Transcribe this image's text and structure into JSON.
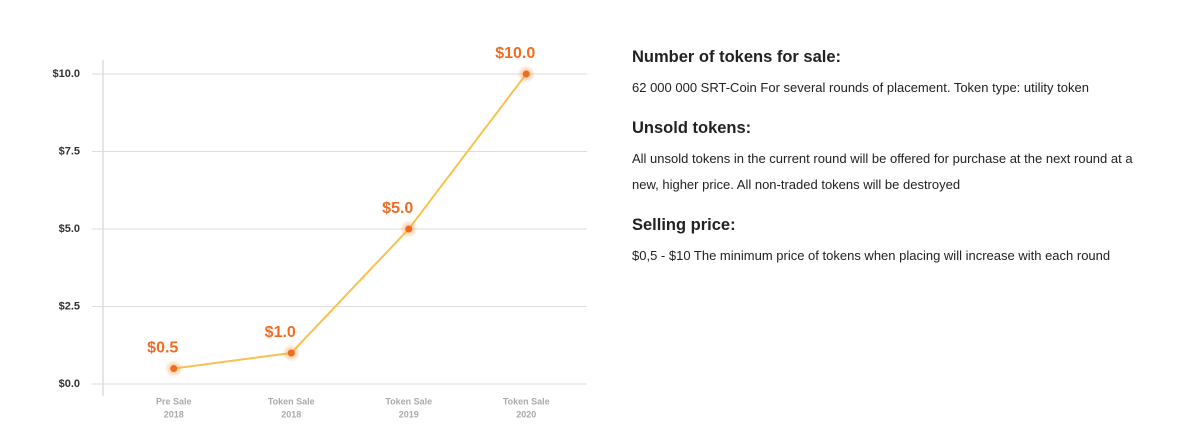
{
  "chart_data": {
    "type": "line",
    "categories": [
      [
        "Pre Sale",
        "2018"
      ],
      [
        "Token Sale",
        "2018"
      ],
      [
        "Token Sale",
        "2019"
      ],
      [
        "Token Sale",
        "2020"
      ]
    ],
    "series": [
      {
        "color": "#f8c150",
        "marker_color": "#f26b1d",
        "values": [
          0.5,
          1.0,
          5.0,
          10.0
        ],
        "value_labels": [
          "$0.5",
          "$1.0",
          "$5.0",
          "$10.0"
        ]
      }
    ],
    "ylim": [
      0,
      10
    ],
    "yticks": [
      {
        "value": 0,
        "label": "$0.0"
      },
      {
        "value": 2.5,
        "label": "$2.5"
      },
      {
        "value": 5,
        "label": "$5.0"
      },
      {
        "value": 7.5,
        "label": "$7.5"
      },
      {
        "value": 10,
        "label": "$10.0"
      }
    ],
    "grid": true
  },
  "info": [
    {
      "heading": "Number of tokens for sale:",
      "text": "62 000 000 SRT-Coin For several rounds of placement. Token type: utility token"
    },
    {
      "heading": "Unsold tokens:",
      "text": "All unsold tokens in the current round will be offered for purchase at the next round at a new, higher price. All non-traded tokens will be destroyed"
    },
    {
      "heading": "Selling price:",
      "text": "$0,5 - $10 The minimum price of tokens when placing will increase with each round"
    }
  ]
}
